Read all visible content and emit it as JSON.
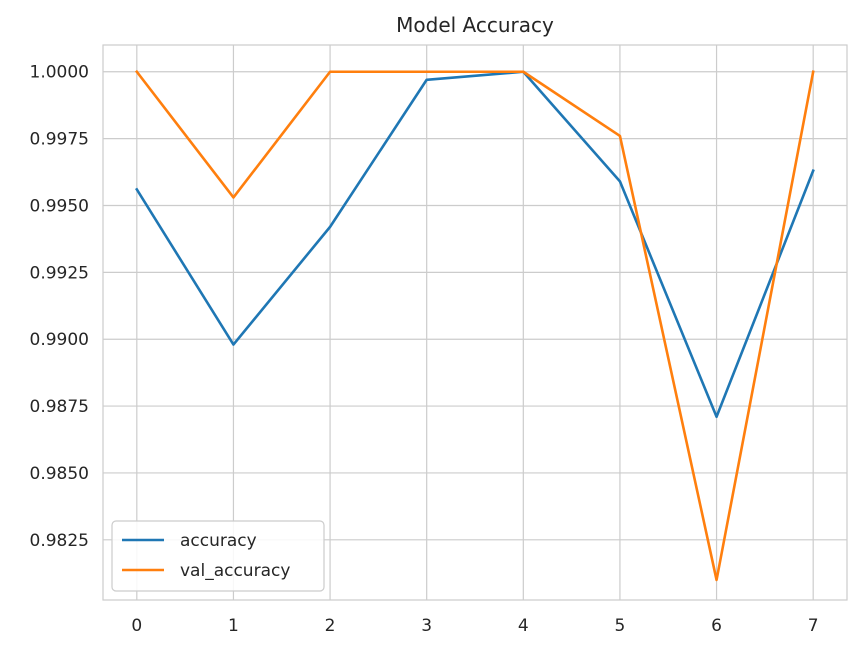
{
  "chart_data": {
    "type": "line",
    "title": "Model Accuracy",
    "xlabel": "",
    "ylabel": "",
    "x": [
      0,
      1,
      2,
      3,
      4,
      5,
      6,
      7
    ],
    "xlim": [
      -0.35,
      7.35
    ],
    "ylim": [
      0.98025,
      1.001
    ],
    "xticks": [
      "0",
      "1",
      "2",
      "3",
      "4",
      "5",
      "6",
      "7"
    ],
    "yticks": [
      1.0,
      0.9975,
      0.995,
      0.9925,
      0.99,
      0.9875,
      0.985,
      0.9825
    ],
    "ytick_labels": [
      "1.0000",
      "0.9975",
      "0.9950",
      "0.9925",
      "0.9900",
      "0.9875",
      "0.9850",
      "0.9825"
    ],
    "grid": true,
    "legend_position": "lower-left",
    "series": [
      {
        "name": "accuracy",
        "color": "#1f77b4",
        "values": [
          0.9956,
          0.9898,
          0.9942,
          0.9997,
          1.0,
          0.9959,
          0.9871,
          0.9963
        ]
      },
      {
        "name": "val_accuracy",
        "color": "#ff7f0e",
        "values": [
          1.0,
          0.9953,
          1.0,
          1.0,
          1.0,
          0.9976,
          0.981,
          1.0
        ]
      }
    ]
  }
}
